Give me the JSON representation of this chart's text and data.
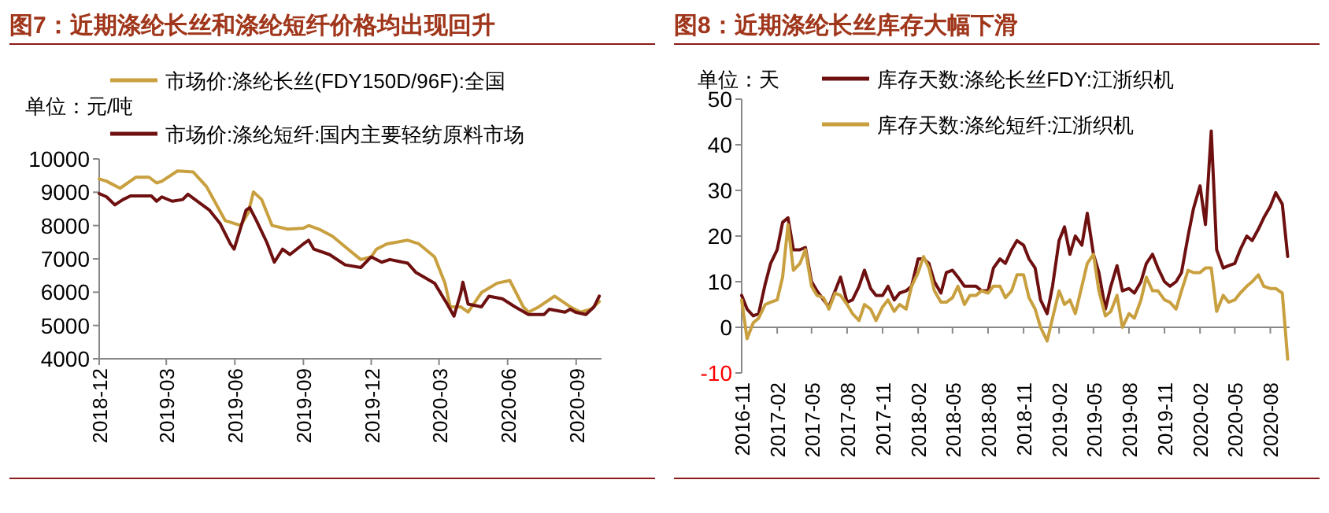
{
  "chart_data": [
    {
      "type": "line",
      "title": "图7：近期涤纶长丝和涤纶短纤价格均出现回升",
      "annotations": [
        "单位：元/吨"
      ],
      "legend": "top left",
      "xlim": [
        "2018-12-01",
        "2020-10-05"
      ],
      "xticks": [
        "2018-12",
        "2019-03",
        "2019-06",
        "2019-09",
        "2019-12",
        "2020-03",
        "2020-06",
        "2020-09"
      ],
      "ylim": [
        4000,
        10000
      ],
      "yticks": [
        4000,
        5000,
        6000,
        7000,
        8000,
        9000,
        10000
      ],
      "series": [
        {
          "name": "市场价:涤纶长丝(FDY150D/96F):全国",
          "color": "#c9a03f",
          "x": [
            "2018-12-01",
            "2018-12-11",
            "2018-12-29",
            "2019-01-19",
            "2019-02-06",
            "2019-02-16",
            "2019-02-23",
            "2019-03-16",
            "2019-04-06",
            "2019-04-24",
            "2019-05-19",
            "2019-06-09",
            "2019-06-19",
            "2019-06-26",
            "2019-07-07",
            "2019-07-21",
            "2019-08-11",
            "2019-09-01",
            "2019-09-08",
            "2019-09-22",
            "2019-10-10",
            "2019-10-31",
            "2019-11-17",
            "2019-12-01",
            "2019-12-08",
            "2019-12-22",
            "2020-01-19",
            "2020-02-03",
            "2020-02-24",
            "2020-03-09",
            "2020-03-16",
            "2020-03-30",
            "2020-04-09",
            "2020-04-27",
            "2020-05-18",
            "2020-06-04",
            "2020-06-22",
            "2020-06-29",
            "2020-07-13",
            "2020-08-03",
            "2020-08-24",
            "2020-09-07",
            "2020-09-21",
            "2020-10-02"
          ],
          "values": [
            9400,
            9330,
            9120,
            9450,
            9450,
            9280,
            9330,
            9640,
            9610,
            9170,
            8150,
            8000,
            8390,
            9010,
            8780,
            8000,
            7890,
            7920,
            8000,
            7890,
            7680,
            7290,
            6980,
            7060,
            7290,
            7450,
            7560,
            7450,
            7060,
            6270,
            5560,
            5560,
            5400,
            5990,
            6270,
            6350,
            5560,
            5400,
            5560,
            5880,
            5560,
            5400,
            5490,
            5720
          ]
        },
        {
          "name": "市场价:涤纶短纤:国内主要轻纺原料市场",
          "color": "#6e1010",
          "x": [
            "2018-12-01",
            "2018-12-11",
            "2018-12-22",
            "2019-01-02",
            "2019-01-12",
            "2019-02-09",
            "2019-02-16",
            "2019-02-23",
            "2019-03-09",
            "2019-03-23",
            "2019-03-30",
            "2019-04-28",
            "2019-05-12",
            "2019-05-26",
            "2019-05-31",
            "2019-06-16",
            "2019-06-21",
            "2019-06-30",
            "2019-07-14",
            "2019-07-24",
            "2019-08-04",
            "2019-08-14",
            "2019-09-01",
            "2019-09-08",
            "2019-09-15",
            "2019-10-06",
            "2019-10-27",
            "2019-11-17",
            "2019-12-01",
            "2019-12-15",
            "2019-12-26",
            "2020-01-19",
            "2020-01-30",
            "2020-02-24",
            "2020-03-12",
            "2020-03-21",
            "2020-03-30",
            "2020-04-02",
            "2020-04-09",
            "2020-04-27",
            "2020-05-07",
            "2020-05-25",
            "2020-06-11",
            "2020-06-29",
            "2020-07-20",
            "2020-07-27",
            "2020-08-17",
            "2020-08-24",
            "2020-08-31",
            "2020-09-14",
            "2020-09-25",
            "2020-10-02"
          ],
          "values": [
            8960,
            8860,
            8620,
            8780,
            8890,
            8890,
            8730,
            8860,
            8730,
            8780,
            8940,
            8460,
            8070,
            7450,
            7290,
            8460,
            8540,
            8150,
            7490,
            6900,
            7290,
            7130,
            7450,
            7560,
            7290,
            7130,
            6820,
            6740,
            7060,
            6900,
            6980,
            6870,
            6590,
            6270,
            5640,
            5280,
            5960,
            6300,
            5640,
            5560,
            5880,
            5800,
            5560,
            5330,
            5330,
            5490,
            5400,
            5490,
            5400,
            5330,
            5560,
            5880
          ]
        }
      ]
    },
    {
      "type": "line",
      "title": "图8：近期涤纶长丝库存大幅下滑",
      "annotations": [
        "单位：天"
      ],
      "legend": "top left",
      "xlim": [
        "2016-11-01",
        "2020-09-20"
      ],
      "xticks": [
        "2016-11",
        "2017-02",
        "2017-05",
        "2017-08",
        "2017-11",
        "2018-02",
        "2018-05",
        "2018-08",
        "2018-11",
        "2019-02",
        "2019-05",
        "2019-08",
        "2019-11",
        "2020-02",
        "2020-05",
        "2020-08"
      ],
      "ylim": [
        -10,
        50
      ],
      "yticks": [
        -10,
        0,
        10,
        20,
        30,
        40,
        50
      ],
      "x": [
        "2016-11-01",
        "2016-11-15",
        "2016-12-01",
        "2016-12-15",
        "2017-01-01",
        "2017-01-15",
        "2017-02-01",
        "2017-02-15",
        "2017-03-01",
        "2017-03-15",
        "2017-04-01",
        "2017-04-15",
        "2017-05-01",
        "2017-05-15",
        "2017-06-01",
        "2017-06-15",
        "2017-07-01",
        "2017-07-15",
        "2017-08-01",
        "2017-08-15",
        "2017-09-01",
        "2017-09-15",
        "2017-10-01",
        "2017-10-15",
        "2017-11-01",
        "2017-11-15",
        "2017-12-01",
        "2017-12-15",
        "2018-01-01",
        "2018-01-15",
        "2018-02-01",
        "2018-02-15",
        "2018-03-01",
        "2018-03-15",
        "2018-04-01",
        "2018-04-15",
        "2018-05-01",
        "2018-05-15",
        "2018-06-01",
        "2018-06-15",
        "2018-07-01",
        "2018-07-15",
        "2018-08-01",
        "2018-08-15",
        "2018-09-01",
        "2018-09-15",
        "2018-10-01",
        "2018-10-15",
        "2018-11-01",
        "2018-11-15",
        "2018-12-01",
        "2018-12-15",
        "2019-01-01",
        "2019-01-15",
        "2019-02-01",
        "2019-02-15",
        "2019-03-01",
        "2019-03-15",
        "2019-04-01",
        "2019-04-15",
        "2019-05-01",
        "2019-05-15",
        "2019-06-01",
        "2019-06-15",
        "2019-07-01",
        "2019-07-15",
        "2019-08-01",
        "2019-08-15",
        "2019-09-01",
        "2019-09-15",
        "2019-10-01",
        "2019-10-15",
        "2019-11-01",
        "2019-11-15",
        "2019-12-01",
        "2019-12-15",
        "2020-01-01",
        "2020-01-15",
        "2020-02-01",
        "2020-02-15",
        "2020-03-01",
        "2020-03-15",
        "2020-04-01",
        "2020-04-15",
        "2020-05-01",
        "2020-05-15",
        "2020-06-01",
        "2020-06-15",
        "2020-07-01",
        "2020-07-15",
        "2020-08-01",
        "2020-08-15",
        "2020-09-01",
        "2020-09-15"
      ],
      "series": [
        {
          "name": "库存天数:涤纶长丝FDY:江浙织机",
          "color": "#6e1010",
          "values": [
            7,
            4,
            2.5,
            3,
            9.5,
            14,
            17,
            23,
            24,
            17,
            17,
            17.5,
            10,
            8,
            6,
            4.5,
            8,
            11,
            5.5,
            6,
            9,
            12.5,
            8.5,
            7,
            7,
            9,
            6,
            7.5,
            8,
            9,
            15,
            15,
            14,
            10,
            7.5,
            12,
            12.5,
            11,
            9,
            9,
            9,
            8,
            8,
            13,
            15,
            14,
            17,
            19,
            18,
            15,
            13,
            6,
            3,
            9,
            19,
            22,
            16,
            20,
            18,
            25,
            16,
            12,
            4,
            9,
            13.5,
            8,
            8.5,
            7.5,
            10,
            14,
            16,
            13,
            10,
            9,
            10,
            12,
            20,
            26,
            31,
            22.5,
            43,
            17,
            13,
            13.5,
            14,
            17,
            20,
            19,
            21.5,
            24,
            26.5,
            29.5,
            27,
            15.5
          ]
        },
        {
          "name": "库存天数:涤纶短纤:江浙织机",
          "color": "#c9a03f",
          "values": [
            6,
            -2.5,
            1,
            2,
            5,
            5.5,
            6,
            11,
            22.5,
            12.5,
            14,
            17,
            9,
            7,
            6.5,
            4,
            7.5,
            7,
            5,
            3,
            1.5,
            5,
            4,
            1.5,
            4.5,
            6,
            3.5,
            5,
            4,
            9,
            12,
            15.5,
            13,
            8,
            5.5,
            5.5,
            6.5,
            9,
            5,
            7,
            7,
            8,
            7.5,
            9,
            9,
            6.5,
            8,
            11.5,
            11.5,
            6.5,
            4,
            0,
            -3,
            2,
            8,
            5,
            6,
            3,
            9,
            14,
            16,
            8,
            2.5,
            3.5,
            7,
            0,
            3,
            2,
            6,
            11,
            8,
            8,
            6,
            5.5,
            4,
            8,
            12.5,
            12,
            12,
            13,
            13,
            3.5,
            7,
            5.5,
            6,
            7.5,
            9,
            10,
            11.5,
            9,
            8.5,
            8.5,
            7.5,
            -7
          ]
        }
      ]
    }
  ]
}
